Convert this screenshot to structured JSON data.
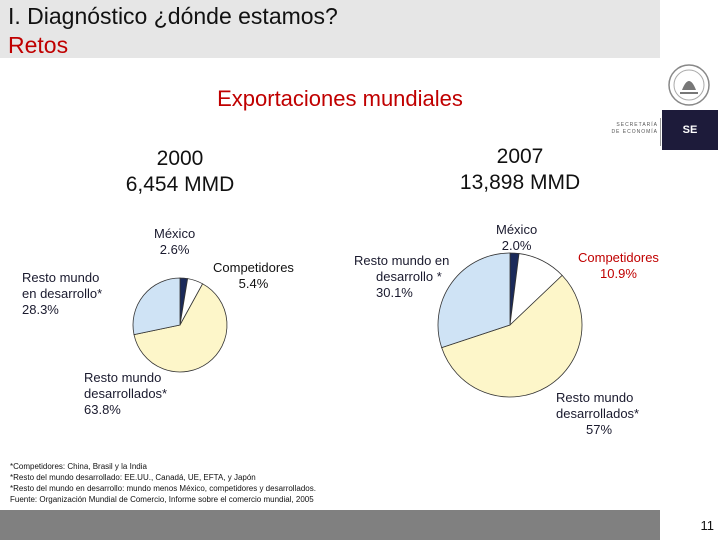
{
  "header": {
    "title_line1": "I.   Diagnóstico ¿dónde estamos?",
    "title_line2": "Retos"
  },
  "logo": {
    "ministry_line1": "SECRETARÍA",
    "ministry_line2": "DE ECONOMÍA",
    "badge": "SE"
  },
  "subtitle": "Exportaciones mundiales",
  "chart_data": [
    {
      "type": "pie",
      "year": "2000",
      "total": "6,454  MMD",
      "slices": [
        {
          "label_lines": [
            "México",
            "2.6%"
          ],
          "value": 2.6,
          "color": "#1b2a5a"
        },
        {
          "label_lines": [
            "Competidores",
            "5.4%"
          ],
          "value": 5.4,
          "color": "#ffffff"
        },
        {
          "label_lines": [
            "Resto mundo",
            "desarrollados*",
            "63.8%"
          ],
          "value": 63.8,
          "color": "#fdf6c9"
        },
        {
          "label_lines": [
            "Resto mundo",
            "en desarrollo*",
            "28.3%"
          ],
          "value": 28.3,
          "color": "#cfe3f5"
        }
      ]
    },
    {
      "type": "pie",
      "year": "2007",
      "total": "13,898 MMD",
      "slices": [
        {
          "label_lines": [
            "México",
            "2.0%"
          ],
          "value": 2.0,
          "color": "#1b2a5a"
        },
        {
          "label_lines": [
            "Competidores",
            "10.9%"
          ],
          "value": 10.9,
          "color": "#ffffff"
        },
        {
          "label_lines": [
            "Resto mundo",
            "desarrollados*",
            "57%"
          ],
          "value": 57,
          "color": "#fdf6c9"
        },
        {
          "label_lines": [
            "Resto mundo en",
            "desarrollo *",
            "30.1%"
          ],
          "value": 30.1,
          "color": "#cfe3f5"
        }
      ]
    }
  ],
  "notes": [
    "*Competidores: China, Brasil y la India",
    "*Resto del mundo desarrollado: EE.UU., Canadá, UE, EFTA, y Japón",
    "*Resto del mundo en desarrollo: mundo menos México, competidores y desarrollados.",
    "Fuente: Organización Mundial de Comercio, Informe sobre el comercio mundial, 2005"
  ],
  "page_number": "11"
}
